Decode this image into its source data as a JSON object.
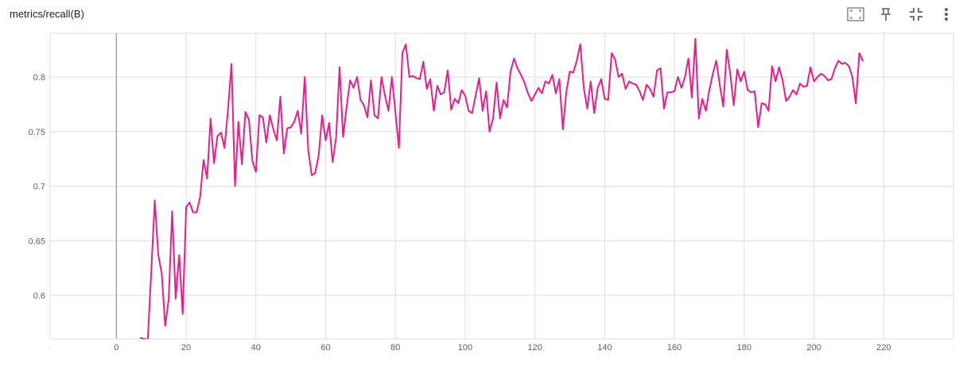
{
  "card": {
    "title": "metrics/recall(B)"
  },
  "toolbar": {
    "buttons": [
      {
        "name": "fit-domain-icon"
      },
      {
        "name": "pin-icon"
      },
      {
        "name": "fullscreen-exit-icon"
      },
      {
        "name": "more-vert-icon"
      }
    ]
  },
  "colors": {
    "series": "#e91e8c",
    "grid": "#dddddd",
    "zero_axis": "#9e9e9e"
  },
  "chart_data": {
    "type": "line",
    "title": "metrics/recall(B)",
    "xlabel": "",
    "ylabel": "",
    "xlim": [
      -19,
      240
    ],
    "ylim": [
      0.56,
      0.84
    ],
    "x_ticks": [
      0,
      20,
      40,
      60,
      80,
      100,
      120,
      140,
      160,
      180,
      200,
      220
    ],
    "y_ticks": [
      0.6,
      0.65,
      0.7,
      0.75,
      0.8
    ],
    "y_tick_labels": [
      "0.6",
      "0.65",
      "0.7",
      "0.75",
      "0.8"
    ],
    "grid": true,
    "series": [
      {
        "x": [
          7,
          8,
          9,
          10,
          11,
          12,
          13,
          14,
          15,
          16,
          17,
          18,
          19,
          20,
          21,
          22,
          23,
          24,
          25,
          26,
          27,
          28,
          29,
          30,
          31,
          32,
          33,
          34,
          35,
          36,
          37,
          38,
          39,
          40,
          41,
          42,
          43,
          44,
          45,
          46,
          47,
          48,
          49,
          50,
          51,
          52,
          53,
          54,
          55,
          56,
          57,
          58,
          59,
          60,
          61,
          62,
          63,
          64,
          65,
          66,
          67,
          68,
          69,
          70,
          71,
          72,
          73,
          74,
          75,
          76,
          77,
          78,
          79,
          80,
          81,
          82,
          83,
          84,
          85,
          86,
          87,
          88,
          89,
          90,
          91,
          92,
          93,
          94,
          95,
          96,
          97,
          98,
          99,
          100,
          101,
          102,
          103,
          104,
          105,
          106,
          107,
          108,
          109,
          110,
          111,
          112,
          113,
          114,
          115,
          116,
          117,
          118,
          119,
          120,
          121,
          122,
          123,
          124,
          125,
          126,
          127,
          128,
          129,
          130,
          131,
          132,
          133,
          134,
          135,
          136,
          137,
          138,
          139,
          140,
          141,
          142,
          143,
          144,
          145,
          146,
          147,
          148,
          149,
          150,
          151,
          152,
          153,
          154,
          155,
          156,
          157,
          158,
          159,
          160,
          161,
          162,
          163,
          164,
          165,
          166,
          167,
          168,
          169,
          170,
          171,
          172,
          173,
          174,
          175,
          176,
          177,
          178,
          179,
          180,
          181,
          182,
          183,
          184,
          185,
          186,
          187,
          188,
          189,
          190,
          191,
          192,
          193,
          194,
          195,
          196,
          197,
          198,
          199,
          200,
          201,
          202,
          203,
          204,
          205,
          206,
          207,
          208,
          209,
          210,
          211,
          212,
          213,
          214
        ],
        "values": [
          0.561,
          0.56,
          0.559,
          0.622,
          0.687,
          0.637,
          0.62,
          0.572,
          0.596,
          0.677,
          0.597,
          0.637,
          0.583,
          0.681,
          0.685,
          0.676,
          0.676,
          0.69,
          0.724,
          0.707,
          0.762,
          0.721,
          0.746,
          0.749,
          0.735,
          0.77,
          0.812,
          0.7,
          0.759,
          0.72,
          0.768,
          0.761,
          0.723,
          0.713,
          0.765,
          0.763,
          0.74,
          0.765,
          0.752,
          0.742,
          0.782,
          0.73,
          0.753,
          0.754,
          0.759,
          0.769,
          0.748,
          0.8,
          0.733,
          0.71,
          0.712,
          0.728,
          0.765,
          0.742,
          0.758,
          0.722,
          0.745,
          0.809,
          0.745,
          0.772,
          0.797,
          0.79,
          0.8,
          0.779,
          0.774,
          0.763,
          0.797,
          0.765,
          0.762,
          0.8,
          0.783,
          0.769,
          0.8,
          0.768,
          0.735,
          0.822,
          0.83,
          0.8,
          0.801,
          0.799,
          0.798,
          0.814,
          0.789,
          0.798,
          0.769,
          0.792,
          0.784,
          0.786,
          0.806,
          0.77,
          0.78,
          0.776,
          0.788,
          0.783,
          0.769,
          0.767,
          0.783,
          0.799,
          0.769,
          0.787,
          0.75,
          0.762,
          0.795,
          0.762,
          0.779,
          0.772,
          0.805,
          0.817,
          0.808,
          0.802,
          0.795,
          0.785,
          0.778,
          0.784,
          0.79,
          0.785,
          0.796,
          0.794,
          0.802,
          0.785,
          0.798,
          0.752,
          0.786,
          0.805,
          0.804,
          0.815,
          0.83,
          0.79,
          0.771,
          0.796,
          0.767,
          0.79,
          0.798,
          0.78,
          0.779,
          0.822,
          0.816,
          0.8,
          0.803,
          0.789,
          0.796,
          0.794,
          0.793,
          0.787,
          0.779,
          0.793,
          0.789,
          0.782,
          0.806,
          0.808,
          0.771,
          0.786,
          0.786,
          0.787,
          0.8,
          0.79,
          0.8,
          0.817,
          0.781,
          0.835,
          0.762,
          0.78,
          0.769,
          0.788,
          0.803,
          0.815,
          0.793,
          0.773,
          0.825,
          0.803,
          0.774,
          0.807,
          0.796,
          0.805,
          0.788,
          0.786,
          0.787,
          0.754,
          0.776,
          0.775,
          0.769,
          0.81,
          0.796,
          0.809,
          0.797,
          0.778,
          0.782,
          0.788,
          0.784,
          0.794,
          0.791,
          0.792,
          0.809,
          0.796,
          0.8,
          0.803,
          0.801,
          0.797,
          0.798,
          0.808,
          0.815,
          0.812,
          0.813,
          0.81,
          0.8,
          0.776,
          0.822,
          0.815
        ]
      }
    ]
  }
}
